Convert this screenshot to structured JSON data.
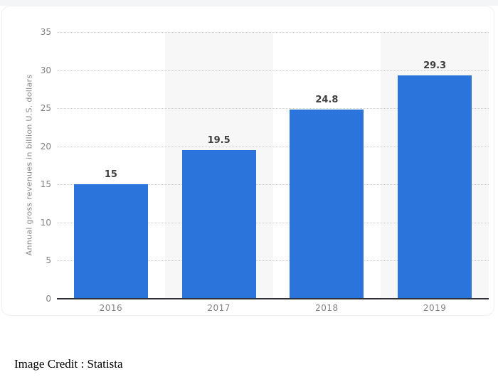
{
  "chart_data": {
    "type": "bar",
    "title": "",
    "categories": [
      "2016",
      "2017",
      "2018",
      "2019"
    ],
    "values": [
      15,
      19.5,
      24.8,
      29.3
    ],
    "value_labels": [
      "15",
      "19.5",
      "24.8",
      "29.3"
    ],
    "xlabel": "",
    "ylabel": "Annual gross revenues in billion U.S. dollars",
    "ylim": [
      0,
      35
    ],
    "yticks": [
      0,
      5,
      10,
      15,
      20,
      25,
      30,
      35
    ],
    "grid": "horizontal-dotted",
    "legend": "none",
    "bar_color": "#2b74dc",
    "stripe_color": "#f7f7f7",
    "striped_columns": [
      1,
      3
    ]
  },
  "credit": {
    "text": "Image Credit : Statista"
  }
}
